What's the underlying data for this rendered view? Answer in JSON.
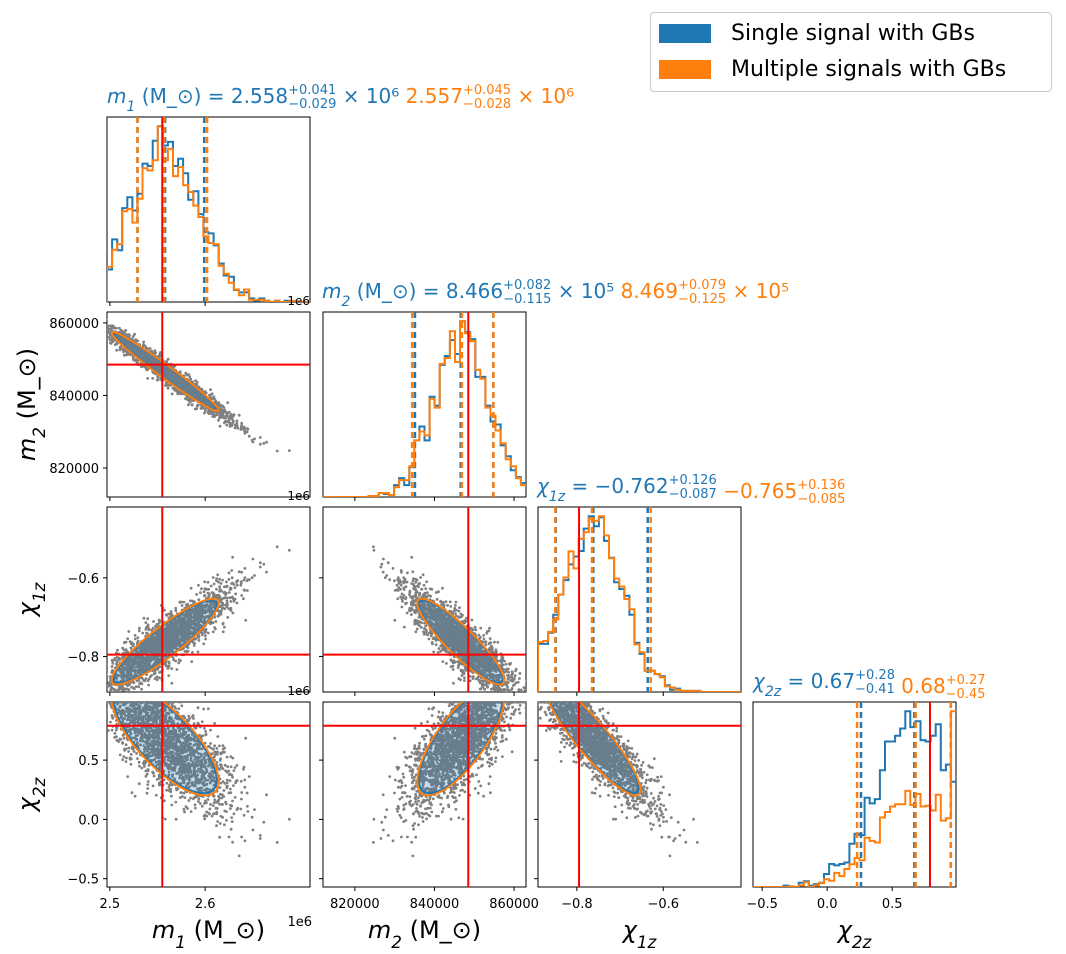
{
  "legend": [
    {
      "label": "Single signal with GBs",
      "color": "#1f77b4"
    },
    {
      "label": "Multiple signals with GBs",
      "color": "#ff7f0e"
    }
  ],
  "colors": {
    "scatter": "#808080",
    "truth": "#ff0000",
    "single": "#1f77b4",
    "multiple": "#ff7f0e"
  },
  "chart_data": {
    "type": "corner",
    "parameters": [
      {
        "id": "m1",
        "label": "m_1 (M_⊙)",
        "range": [
          2.497,
          2.71
        ],
        "ticks": [
          2.5,
          2.6
        ],
        "tick_labels": [
          "2.5",
          "2.6"
        ],
        "offset_text": "1e6",
        "truth": 2.555,
        "title_single": {
          "value": "2.558",
          "upper": "+0.041",
          "lower": "−0.029",
          "exp": "× 10⁶"
        },
        "title_multiple": {
          "value": "2.557",
          "upper": "+0.045",
          "lower": "−0.028",
          "exp": "× 10⁶"
        },
        "quantiles_single": [
          2.529,
          2.558,
          2.599
        ],
        "quantiles_multiple": [
          2.529,
          2.557,
          2.602
        ]
      },
      {
        "id": "m2",
        "label": "m_2 (M_⊙)",
        "range": [
          812000,
          863000
        ],
        "ticks": [
          820000,
          840000,
          860000
        ],
        "tick_labels": [
          "820000",
          "840000",
          "860000"
        ],
        "offset_text": "",
        "truth": 848500,
        "title_single": {
          "value": "8.466",
          "upper": "+0.082",
          "lower": "−0.115",
          "exp": "× 10⁵"
        },
        "title_multiple": {
          "value": "8.469",
          "upper": "+0.079",
          "lower": "−0.125",
          "exp": "× 10⁵"
        },
        "quantiles_single": [
          835100,
          846600,
          854800
        ],
        "quantiles_multiple": [
          834400,
          846900,
          854800
        ]
      },
      {
        "id": "chi1z",
        "label": "χ_1z",
        "range": [
          -0.89,
          -0.42
        ],
        "ticks": [
          -0.8,
          -0.6
        ],
        "tick_labels": [
          "−0.8",
          "−0.6"
        ],
        "offset_text": "",
        "truth": -0.795,
        "title_single": {
          "value": "−0.762",
          "upper": "+0.126",
          "lower": "−0.087",
          "exp": ""
        },
        "title_multiple": {
          "value": "−0.765",
          "upper": "+0.136",
          "lower": "−0.085",
          "exp": ""
        },
        "quantiles_single": [
          -0.849,
          -0.762,
          -0.636
        ],
        "quantiles_multiple": [
          -0.85,
          -0.765,
          -0.629
        ]
      },
      {
        "id": "chi2z",
        "label": "χ_2z",
        "range": [
          -0.57,
          0.99
        ],
        "ticks": [
          -0.5,
          0.0,
          0.5
        ],
        "tick_labels": [
          "−0.5",
          "0.0",
          "0.5"
        ],
        "offset_text": "",
        "truth": 0.79,
        "title_single": {
          "value": "0.67",
          "upper": "+0.28",
          "lower": "−0.41",
          "exp": ""
        },
        "title_multiple": {
          "value": "0.68",
          "upper": "+0.27",
          "lower": "−0.45",
          "exp": ""
        },
        "quantiles_single": [
          0.26,
          0.67,
          0.95
        ],
        "quantiles_multiple": [
          0.23,
          0.68,
          0.95
        ]
      }
    ],
    "offset_text_m1_shared": "1e6",
    "mean": [
      2.558,
      846600,
      -0.762,
      0.67
    ],
    "sigma": [
      0.036,
      7000,
      0.07,
      0.3
    ],
    "correlation": [
      [
        1,
        -0.98,
        0.9,
        -0.75
      ],
      [
        -0.98,
        1,
        -0.9,
        0.75
      ],
      [
        0.9,
        -0.9,
        1,
        -0.9
      ],
      [
        -0.75,
        0.75,
        -0.9,
        1
      ]
    ],
    "histogram_bins": 40,
    "legend_position": "top-right"
  }
}
